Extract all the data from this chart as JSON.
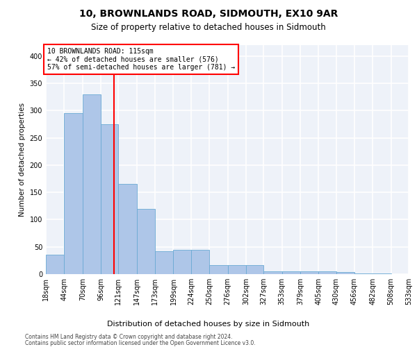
{
  "title": "10, BROWNLANDS ROAD, SIDMOUTH, EX10 9AR",
  "subtitle": "Size of property relative to detached houses in Sidmouth",
  "xlabel": "Distribution of detached houses by size in Sidmouth",
  "ylabel": "Number of detached properties",
  "bar_edges": [
    18,
    44,
    70,
    96,
    121,
    147,
    173,
    199,
    224,
    250,
    276,
    302,
    327,
    353,
    379,
    405,
    430,
    456,
    482,
    508,
    533
  ],
  "bar_heights": [
    36,
    295,
    330,
    275,
    165,
    120,
    42,
    45,
    45,
    16,
    16,
    17,
    5,
    5,
    5,
    5,
    4,
    1,
    1,
    0
  ],
  "bar_color": "#aec6e8",
  "bar_edge_color": "#6aaad4",
  "property_size": 115,
  "vline_color": "red",
  "annotation_text": "10 BROWNLANDS ROAD: 115sqm\n← 42% of detached houses are smaller (576)\n57% of semi-detached houses are larger (781) →",
  "annotation_box_color": "white",
  "annotation_box_edge_color": "red",
  "ylim": [
    0,
    420
  ],
  "yticks": [
    0,
    50,
    100,
    150,
    200,
    250,
    300,
    350,
    400
  ],
  "footer_line1": "Contains HM Land Registry data © Crown copyright and database right 2024.",
  "footer_line2": "Contains public sector information licensed under the Open Government Licence v3.0.",
  "bg_color": "#eef2f9",
  "grid_color": "white",
  "title_fontsize": 10,
  "subtitle_fontsize": 8.5,
  "ylabel_fontsize": 7.5,
  "tick_fontsize": 7,
  "annot_fontsize": 7,
  "footer_fontsize": 5.5
}
